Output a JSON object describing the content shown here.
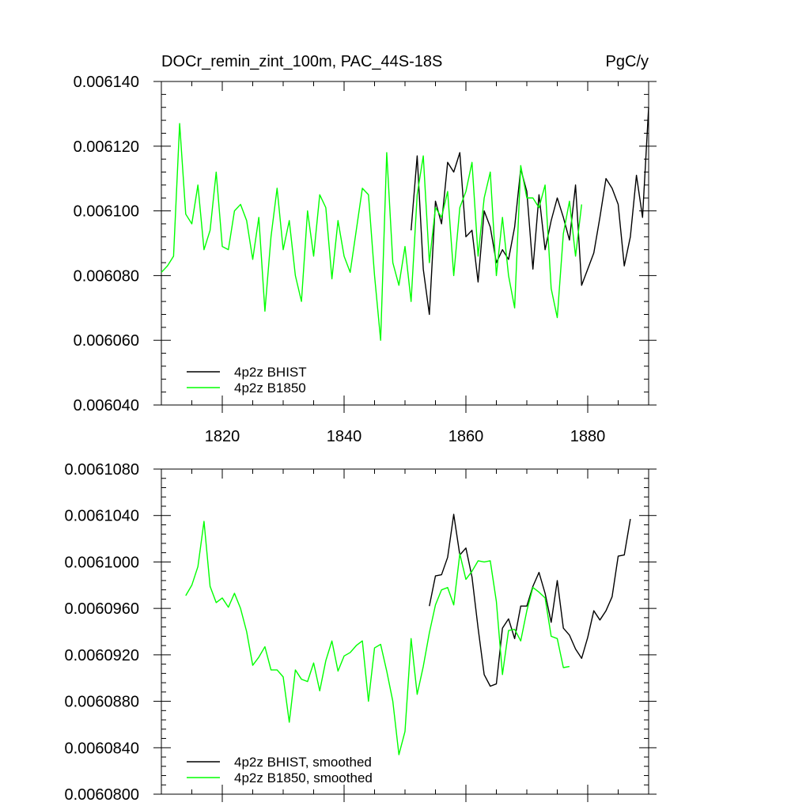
{
  "figure": {
    "title_left": "DOCr_remin_zint_100m, PAC_44S-18S",
    "title_right": "PgC/y"
  },
  "chart_data": [
    {
      "type": "line",
      "title": "DOCr_remin_zint_100m, PAC_44S-18S",
      "units": "PgC/y",
      "xlim": [
        1810,
        1890
      ],
      "ylim": [
        0.00604,
        0.00614
      ],
      "x_ticks": [
        1820,
        1840,
        1860,
        1880
      ],
      "y_ticks": [
        0.00604,
        0.00606,
        0.00608,
        0.0061,
        0.00612,
        0.00614
      ],
      "y_tick_labels": [
        "0.006040",
        "0.006060",
        "0.006080",
        "0.006100",
        "0.006120",
        "0.006140"
      ],
      "legend_position": "bottom-left",
      "grid": false,
      "series": [
        {
          "name": "4p2z BHIST",
          "color": "#000000",
          "x_start": 1851,
          "values": [
            0.006094,
            0.006117,
            0.006082,
            0.006068,
            0.006103,
            0.006096,
            0.006115,
            0.006112,
            0.006118,
            0.006092,
            0.006094,
            0.006078,
            0.0061,
            0.006095,
            0.006084,
            0.006088,
            0.006085,
            0.006095,
            0.006113,
            0.006106,
            0.006082,
            0.006105,
            0.006088,
            0.006097,
            0.006104,
            0.006098,
            0.006091,
            0.006108,
            0.006077,
            0.006082,
            0.006087,
            0.006098,
            0.00611,
            0.006107,
            0.006102,
            0.006083,
            0.006092,
            0.006111,
            0.006098,
            0.006132
          ]
        },
        {
          "name": "4p2z B1850",
          "color": "#00ff00",
          "x_start": 1810,
          "values": [
            0.006081,
            0.006083,
            0.006086,
            0.006127,
            0.006099,
            0.006096,
            0.006108,
            0.006088,
            0.006094,
            0.006112,
            0.006089,
            0.006088,
            0.0061,
            0.006102,
            0.006097,
            0.006085,
            0.006098,
            0.006069,
            0.006092,
            0.006107,
            0.006088,
            0.006097,
            0.00608,
            0.006072,
            0.0061,
            0.006086,
            0.006105,
            0.006101,
            0.006079,
            0.006097,
            0.006086,
            0.006081,
            0.006094,
            0.006107,
            0.006105,
            0.00608,
            0.00606,
            0.006118,
            0.006084,
            0.006077,
            0.006089,
            0.006072,
            0.006105,
            0.006117,
            0.006084,
            0.006101,
            0.006098,
            0.006106,
            0.00608,
            0.006101,
            0.006106,
            0.006115,
            0.006086,
            0.006104,
            0.006112,
            0.00608,
            0.006098,
            0.00608,
            0.00607,
            0.006114,
            0.006104,
            0.006104,
            0.006101,
            0.006108,
            0.006076,
            0.006067,
            0.006093,
            0.006103,
            0.006086,
            0.006102
          ]
        }
      ]
    },
    {
      "type": "line",
      "xlim": [
        1810,
        1890
      ],
      "ylim": [
        0.00608,
        0.006108
      ],
      "x_ticks": [
        1820,
        1840,
        1860,
        1880
      ],
      "y_ticks": [
        0.00608,
        0.006084,
        0.006088,
        0.006092,
        0.006096,
        0.0061,
        0.006104,
        0.006108
      ],
      "y_tick_labels": [
        "0.0060800",
        "0.0060840",
        "0.0060880",
        "0.0060920",
        "0.0060960",
        "0.0061000",
        "0.0061040",
        "0.0061080"
      ],
      "legend_position": "bottom-left",
      "grid": false,
      "series": [
        {
          "name": "4p2z BHIST, smoothed",
          "color": "#000000",
          "x_start": 1854,
          "values": [
            0.0060962,
            0.0060988,
            0.0060989,
            0.0061004,
            0.0061041,
            0.0061006,
            0.0061012,
            0.0060987,
            0.0060943,
            0.0060903,
            0.0060893,
            0.0060895,
            0.0060943,
            0.0060951,
            0.0060934,
            0.0060962,
            0.0060962,
            0.0060979,
            0.0060991,
            0.0060973,
            0.0060948,
            0.0060984,
            0.0060943,
            0.0060937,
            0.0060925,
            0.0060917,
            0.0060935,
            0.0060958,
            0.006095,
            0.0060958,
            0.006097,
            0.0061005,
            0.0061006,
            0.0061037
          ]
        },
        {
          "name": "4p2z B1850, smoothed",
          "color": "#00ff00",
          "x_start": 1814,
          "values": [
            0.0060971,
            0.006098,
            0.0060996,
            0.0061035,
            0.0060979,
            0.0060965,
            0.0060969,
            0.0060961,
            0.0060973,
            0.006096,
            0.006094,
            0.0060911,
            0.0060918,
            0.0060927,
            0.0060907,
            0.0060907,
            0.0060901,
            0.0060862,
            0.0060907,
            0.0060899,
            0.0060897,
            0.0060913,
            0.0060889,
            0.0060915,
            0.0060932,
            0.0060906,
            0.0060919,
            0.0060922,
            0.0060928,
            0.0060932,
            0.006088,
            0.0060926,
            0.0060929,
            0.0060906,
            0.006088,
            0.0060834,
            0.0060854,
            0.0060934,
            0.0060886,
            0.006091,
            0.0060939,
            0.0060963,
            0.0060976,
            0.0060978,
            0.0060963,
            0.0061007,
            0.0060985,
            0.0060992,
            0.0061001,
            0.0061,
            0.0061001,
            0.0060966,
            0.0060903,
            0.0060941,
            0.0060942,
            0.0060932,
            0.0060958,
            0.0060978,
            0.0060974,
            0.0060969,
            0.0060936,
            0.0060934,
            0.0060909,
            0.006091
          ]
        }
      ]
    }
  ]
}
